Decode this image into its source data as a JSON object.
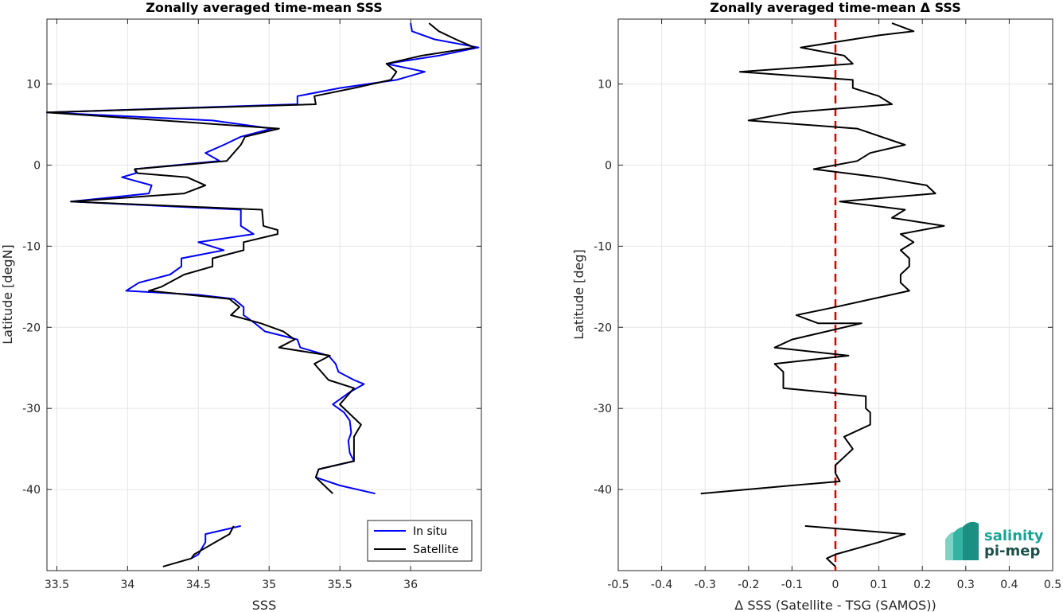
{
  "colors": {
    "in_situ": "#0000ff",
    "satellite": "#000000",
    "zero_line": "#d40000",
    "grid": "#e6e6e6",
    "axes": "#262626",
    "logo_teal": "#1aa394",
    "logo_dark": "#1d4f4a"
  },
  "logo": {
    "line1": "salinity",
    "line2": "pi-mep"
  },
  "chart_data": [
    {
      "type": "line",
      "title": "Zonally averaged time-mean SSS",
      "xlabel": "SSS",
      "ylabel": "Latitude [degN]",
      "xlim": [
        33.43,
        36.5
      ],
      "ylim": [
        -50,
        18
      ],
      "xticks": [
        33.5,
        34,
        34.5,
        35,
        35.5,
        36
      ],
      "xticklabels": [
        "33.5",
        "34",
        "34.5",
        "35",
        "35.5",
        "36"
      ],
      "yticks": [
        10,
        0,
        -10,
        -20,
        -30,
        -40
      ],
      "yticklabels": [
        "10",
        "0",
        "-10",
        "-20",
        "-30",
        "-40"
      ],
      "grid": true,
      "legend_position": "bottom-right",
      "series": [
        {
          "name": "In situ",
          "segments": [
            [
              [
                36.0,
                17.5
              ],
              [
                36.01,
                16.5
              ],
              [
                36.17,
                15.5
              ],
              [
                36.48,
                14.5
              ],
              [
                36.2,
                13.5
              ],
              [
                35.83,
                12.5
              ],
              [
                36.1,
                11.5
              ],
              [
                35.9,
                10.5
              ],
              [
                35.5,
                9.5
              ],
              [
                35.2,
                8.5
              ],
              [
                35.2,
                7.5
              ],
              [
                33.43,
                6.5
              ],
              [
                34.6,
                5.5
              ],
              [
                35.02,
                4.5
              ],
              [
                34.8,
                3.5
              ],
              [
                34.68,
                2.5
              ],
              [
                34.55,
                1.5
              ],
              [
                34.65,
                0.5
              ],
              [
                34.05,
                -0.5
              ],
              [
                34.06,
                -1
              ],
              [
                33.96,
                -1.5
              ],
              [
                34.17,
                -2.5
              ],
              [
                34.15,
                -3.5
              ],
              [
                33.6,
                -4.5
              ],
              [
                34.8,
                -5.5
              ],
              [
                34.8,
                -7.5
              ],
              [
                34.89,
                -8.5
              ],
              [
                34.5,
                -9.5
              ],
              [
                34.68,
                -10.5
              ],
              [
                34.38,
                -11.5
              ],
              [
                34.38,
                -12.5
              ],
              [
                34.3,
                -13.5
              ],
              [
                34.08,
                -14.5
              ],
              [
                33.99,
                -15.5
              ],
              [
                34.5,
                -16
              ],
              [
                34.75,
                -16.5
              ],
              [
                34.82,
                -17.5
              ],
              [
                34.82,
                -18.5
              ],
              [
                34.9,
                -19.5
              ],
              [
                34.97,
                -20.5
              ],
              [
                35.2,
                -21.5
              ],
              [
                35.22,
                -22.5
              ],
              [
                35.42,
                -23.5
              ],
              [
                35.47,
                -24.5
              ],
              [
                35.49,
                -25.5
              ],
              [
                35.6,
                -26.5
              ],
              [
                35.67,
                -27
              ],
              [
                35.57,
                -28
              ],
              [
                35.45,
                -29.5
              ],
              [
                35.53,
                -30.5
              ],
              [
                35.57,
                -31.5
              ],
              [
                35.58,
                -33
              ],
              [
                35.56,
                -34
              ],
              [
                35.57,
                -35.5
              ],
              [
                35.6,
                -36.5
              ],
              [
                35.35,
                -37.5
              ],
              [
                35.33,
                -38.5
              ],
              [
                35.5,
                -39.5
              ],
              [
                35.75,
                -40.5
              ]
            ],
            [
              [
                34.8,
                -44.5
              ],
              [
                34.55,
                -45.5
              ],
              [
                34.55,
                -46.5
              ],
              [
                34.5,
                -48
              ],
              [
                34.45,
                -48.5
              ]
            ]
          ]
        },
        {
          "name": "Satellite",
          "segments": [
            [
              [
                36.13,
                17.5
              ],
              [
                36.2,
                16.5
              ],
              [
                36.32,
                15.5
              ],
              [
                36.45,
                14.5
              ],
              [
                36.08,
                13.5
              ],
              [
                35.83,
                12.5
              ],
              [
                35.9,
                11.5
              ],
              [
                35.86,
                10.5
              ],
              [
                35.6,
                9.5
              ],
              [
                35.32,
                8.5
              ],
              [
                35.33,
                7.5
              ],
              [
                33.43,
                6.5
              ],
              [
                35.07,
                4.5
              ],
              [
                34.83,
                3.5
              ],
              [
                34.8,
                2.5
              ],
              [
                34.7,
                0.5
              ],
              [
                34.05,
                -0.5
              ],
              [
                34.07,
                -1
              ],
              [
                34.42,
                -1.5
              ],
              [
                34.55,
                -2.5
              ],
              [
                34.4,
                -3.5
              ],
              [
                33.6,
                -4.5
              ],
              [
                34.95,
                -5.5
              ],
              [
                34.96,
                -7.5
              ],
              [
                35.06,
                -8
              ],
              [
                35.06,
                -8.5
              ],
              [
                34.82,
                -9.5
              ],
              [
                34.82,
                -10.5
              ],
              [
                34.6,
                -11.5
              ],
              [
                34.6,
                -12.5
              ],
              [
                34.4,
                -13.5
              ],
              [
                34.24,
                -15
              ],
              [
                34.15,
                -15.5
              ],
              [
                34.72,
                -16.5
              ],
              [
                34.79,
                -17.5
              ],
              [
                34.73,
                -18.5
              ],
              [
                34.94,
                -19.5
              ],
              [
                35.1,
                -20.5
              ],
              [
                35.18,
                -21.5
              ],
              [
                35.07,
                -22.5
              ],
              [
                35.43,
                -23.5
              ],
              [
                35.32,
                -24.5
              ],
              [
                35.42,
                -26.5
              ],
              [
                35.6,
                -27.5
              ],
              [
                35.5,
                -29.5
              ],
              [
                35.65,
                -32
              ],
              [
                35.6,
                -33.5
              ],
              [
                35.6,
                -36.5
              ],
              [
                35.35,
                -37.5
              ],
              [
                35.33,
                -38.5
              ],
              [
                35.42,
                -40
              ],
              [
                35.45,
                -40.5
              ]
            ],
            [
              [
                34.75,
                -44.5
              ],
              [
                34.72,
                -45.5
              ],
              [
                34.62,
                -46.5
              ],
              [
                34.47,
                -48
              ],
              [
                34.45,
                -48.5
              ],
              [
                34.25,
                -49.5
              ]
            ]
          ]
        }
      ]
    },
    {
      "type": "line",
      "title": "Zonally averaged time-mean Δ SSS",
      "xlabel": "Δ SSS (Satellite - TSG (SAMOS))",
      "ylabel": "Latitude [deg]",
      "xlim": [
        -0.5,
        0.5
      ],
      "ylim": [
        -50,
        18
      ],
      "xticks": [
        -0.5,
        -0.4,
        -0.3,
        -0.2,
        -0.1,
        0,
        0.1,
        0.2,
        0.3,
        0.4,
        0.5
      ],
      "xticklabels": [
        "-0.5",
        "-0.4",
        "-0.3",
        "-0.2",
        "-0.1",
        "0",
        "0.1",
        "0.2",
        "0.3",
        "0.4",
        "0.5"
      ],
      "yticks": [
        10,
        0,
        -10,
        -20,
        -30,
        -40
      ],
      "yticklabels": [
        "10",
        "0",
        "-10",
        "-20",
        "-30",
        "-40"
      ],
      "grid": true,
      "zero_line": 0,
      "series": [
        {
          "name": "",
          "segments": [
            [
              [
                0.13,
                17.5
              ],
              [
                0.18,
                16.5
              ],
              [
                0.1,
                16
              ],
              [
                -0.08,
                14.5
              ],
              [
                0.02,
                13.5
              ],
              [
                0.04,
                12.5
              ],
              [
                -0.22,
                11.5
              ],
              [
                0.04,
                10.5
              ],
              [
                0.04,
                9.5
              ],
              [
                0.1,
                8.5
              ],
              [
                0.13,
                7.5
              ],
              [
                -0.1,
                6.5
              ],
              [
                -0.2,
                5.5
              ],
              [
                0.05,
                4.5
              ],
              [
                0.16,
                2.5
              ],
              [
                0.08,
                1.5
              ],
              [
                0.05,
                0.5
              ],
              [
                -0.05,
                -0.5
              ],
              [
                0.1,
                -1.5
              ],
              [
                0.21,
                -2.5
              ],
              [
                0.23,
                -3.5
              ],
              [
                0.01,
                -4.5
              ],
              [
                0.16,
                -5.5
              ],
              [
                0.13,
                -6.5
              ],
              [
                0.25,
                -7.5
              ],
              [
                0.15,
                -8.5
              ],
              [
                0.18,
                -9.5
              ],
              [
                0.15,
                -10.5
              ],
              [
                0.17,
                -11.5
              ],
              [
                0.17,
                -12.5
              ],
              [
                0.15,
                -13.5
              ],
              [
                0.15,
                -14.5
              ],
              [
                0.17,
                -15.5
              ],
              [
                0.0,
                -17.5
              ],
              [
                -0.09,
                -18.5
              ],
              [
                -0.04,
                -19.5
              ],
              [
                0.06,
                -19.5
              ],
              [
                -0.1,
                -21.5
              ],
              [
                -0.14,
                -22.5
              ],
              [
                0.03,
                -23.5
              ],
              [
                -0.14,
                -24.5
              ],
              [
                -0.12,
                -25.5
              ],
              [
                -0.12,
                -26.5
              ],
              [
                -0.12,
                -27.5
              ],
              [
                0.07,
                -28.5
              ],
              [
                0.07,
                -30
              ],
              [
                0.08,
                -30.5
              ],
              [
                0.08,
                -32
              ],
              [
                0.02,
                -33.5
              ],
              [
                0.04,
                -35
              ],
              [
                0.03,
                -35.5
              ],
              [
                0.0,
                -37
              ],
              [
                0.0,
                -38
              ],
              [
                0.01,
                -39
              ],
              [
                -0.1,
                -39.5
              ],
              [
                -0.31,
                -40.5
              ]
            ],
            [
              [
                -0.07,
                -44.5
              ],
              [
                0.16,
                -45.5
              ],
              [
                0.1,
                -46.5
              ],
              [
                0.0,
                -48
              ],
              [
                -0.02,
                -48.5
              ],
              [
                0.0,
                -49.5
              ]
            ]
          ]
        }
      ]
    }
  ]
}
